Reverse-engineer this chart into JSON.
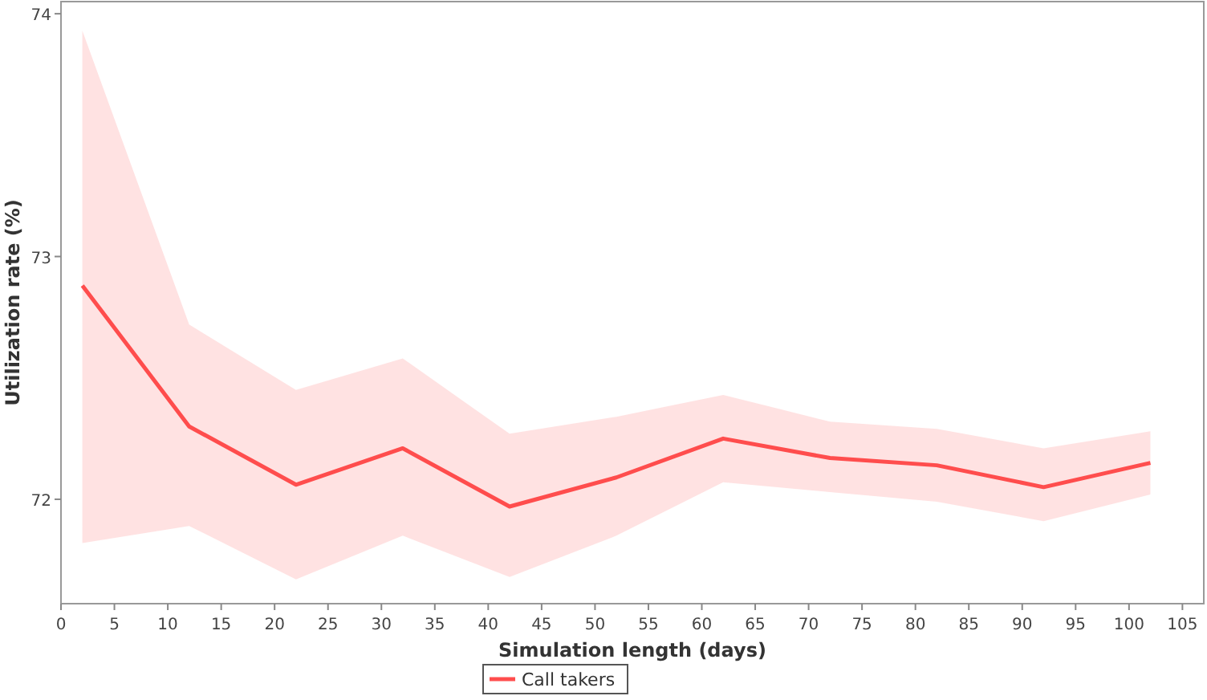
{
  "chart_data": {
    "type": "line",
    "xlabel": "Simulation length (days)",
    "ylabel": "Utilization rate (%)",
    "x": [
      2,
      12,
      22,
      32,
      42,
      52,
      62,
      72,
      82,
      92,
      102
    ],
    "series": [
      {
        "name": "Call takers",
        "color": "#ff4d4d",
        "values": [
          72.88,
          72.3,
          72.06,
          72.21,
          71.97,
          72.09,
          72.25,
          72.17,
          72.14,
          72.05,
          72.15
        ],
        "lower": [
          71.82,
          71.89,
          71.67,
          71.85,
          71.68,
          71.85,
          72.07,
          72.03,
          71.99,
          71.91,
          72.02
        ],
        "upper": [
          73.93,
          72.72,
          72.45,
          72.58,
          72.27,
          72.34,
          72.43,
          72.32,
          72.29,
          72.21,
          72.28
        ]
      }
    ],
    "xlim": [
      0,
      107
    ],
    "ylim": [
      71.57,
      74.05
    ],
    "xticks": [
      0,
      5,
      10,
      15,
      20,
      25,
      30,
      35,
      40,
      45,
      50,
      55,
      60,
      65,
      70,
      75,
      80,
      85,
      90,
      95,
      100,
      105
    ],
    "yticks": [
      72,
      73,
      74
    ],
    "grid": false,
    "legend": "bottom",
    "marker": "none",
    "line_style": "solid"
  }
}
